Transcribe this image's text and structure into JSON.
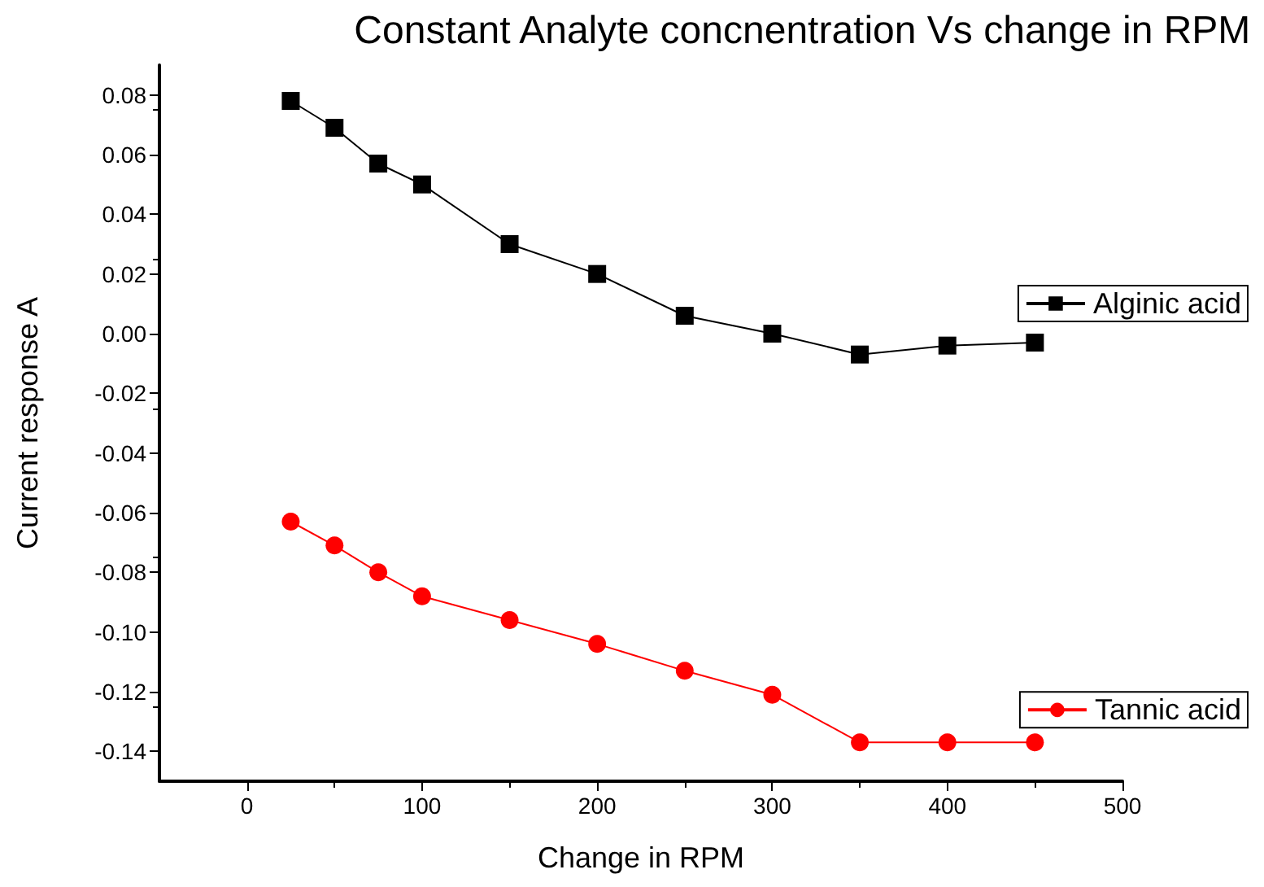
{
  "chart_data": {
    "type": "line",
    "title": "Constant Analyte concnentration Vs change in RPM",
    "xlabel": "Change in RPM",
    "ylabel": "Current response A",
    "x": [
      25,
      50,
      75,
      100,
      150,
      200,
      250,
      300,
      350,
      400,
      450
    ],
    "series": [
      {
        "name": "Alginic acid",
        "color": "#000000",
        "marker": "square",
        "values": [
          0.078,
          0.069,
          0.057,
          0.05,
          0.03,
          0.02,
          0.006,
          0.0,
          -0.007,
          -0.004,
          -0.003
        ]
      },
      {
        "name": "Tannic acid",
        "color": "#ff0000",
        "marker": "circle",
        "values": [
          -0.063,
          -0.071,
          -0.08,
          -0.088,
          -0.096,
          -0.104,
          -0.113,
          -0.121,
          -0.137,
          -0.137,
          -0.137
        ]
      }
    ],
    "xlim": [
      -50,
      500
    ],
    "xticks": [
      0,
      100,
      200,
      300,
      400,
      500
    ],
    "ylim": [
      -0.15,
      0.09
    ],
    "yticks": [
      -0.14,
      -0.12,
      {
        "value": -0.1,
        "label": "-0.10"
      },
      -0.08,
      -0.06,
      -0.04,
      -0.02,
      {
        "value": 0,
        "label": "0.00"
      },
      0.02,
      0.04,
      0.06,
      0.08
    ],
    "grid": false,
    "legend": "right",
    "line_style": "solid"
  }
}
